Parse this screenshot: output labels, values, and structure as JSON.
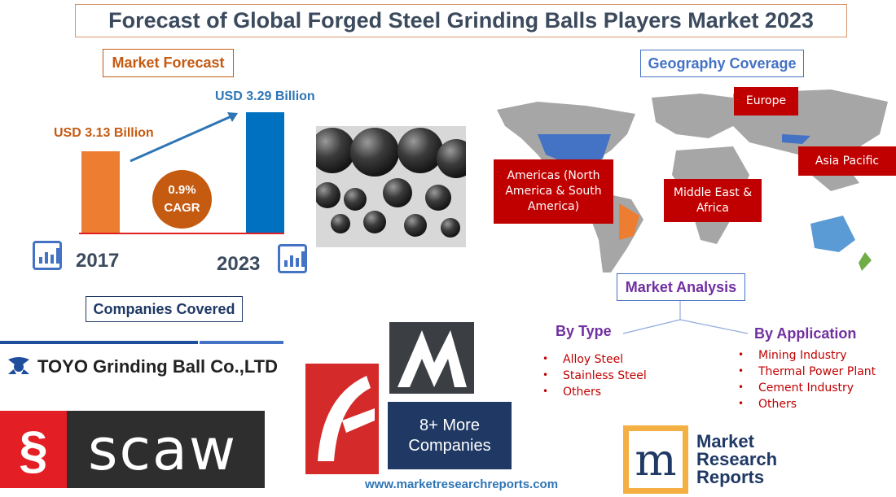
{
  "title": "Forecast of Global Forged Steel Grinding Balls Players Market 2023",
  "market_forecast": {
    "heading": "Market Forecast",
    "bars": [
      {
        "year": "2017",
        "label": "USD 3.13 Billion",
        "value": 3.13,
        "color": "#ed7d31"
      },
      {
        "year": "2023",
        "label": "USD 3.29 Billion",
        "value": 3.29,
        "color": "#0070c0"
      }
    ],
    "cagr_value": "0.9%",
    "cagr_label": "CAGR"
  },
  "geography": {
    "heading": "Geography Coverage",
    "regions": [
      "Europe",
      "Asia Pacific",
      "Americas (North America & South America)",
      "Middle East & Africa"
    ]
  },
  "market_analysis": {
    "heading": "Market Analysis",
    "by_type": {
      "heading": "By Type",
      "items": [
        "Alloy Steel",
        "Stainless Steel",
        "Others"
      ]
    },
    "by_application": {
      "heading": "By Application",
      "items": [
        "Mining Industry",
        "Thermal Power Plant",
        "Cement Industry",
        "Others"
      ]
    }
  },
  "companies": {
    "heading": "Companies Covered",
    "toyo": "TOYO Grinding Ball Co.,LTD",
    "scaw": "scaw",
    "more": "8+ More Companies"
  },
  "footer_url": "www.marketresearchreports.com",
  "logo": {
    "text": [
      "Market",
      "Research",
      "Reports"
    ],
    "mark": "m"
  }
}
